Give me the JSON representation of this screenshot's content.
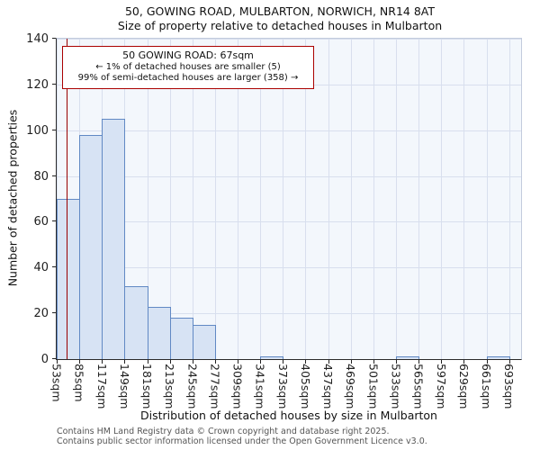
{
  "title": "50, GOWING ROAD, MULBARTON, NORWICH, NR14 8AT",
  "subtitle": "Size of property relative to detached houses in Mulbarton",
  "annotation": {
    "line1": "50 GOWING ROAD: 67sqm",
    "line2": "← 1% of detached houses are smaller (5)",
    "line3": "99% of semi-detached houses are larger (358) →"
  },
  "footer": {
    "line1": "Contains HM Land Registry data © Crown copyright and database right 2025.",
    "line2": "Contains public sector information licensed under the Open Government Licence v3.0."
  },
  "chart_data": {
    "type": "bar",
    "title": "50, GOWING ROAD, MULBARTON, NORWICH, NR14 8AT",
    "subtitle": "Size of property relative to detached houses in Mulbarton",
    "xlabel": "Distribution of detached houses by size in Mulbarton",
    "ylabel": "Number of detached properties",
    "categories": [
      "53sqm",
      "85sqm",
      "117sqm",
      "149sqm",
      "181sqm",
      "213sqm",
      "245sqm",
      "277sqm",
      "309sqm",
      "341sqm",
      "373sqm",
      "405sqm",
      "437sqm",
      "469sqm",
      "501sqm",
      "533sqm",
      "565sqm",
      "597sqm",
      "629sqm",
      "661sqm",
      "693sqm"
    ],
    "values": [
      70,
      98,
      105,
      32,
      23,
      18,
      15,
      0,
      0,
      1,
      0,
      0,
      0,
      0,
      0,
      1,
      0,
      0,
      0,
      1
    ],
    "bin_start": 53,
    "bin_width": 32,
    "xlim": [
      53,
      710
    ],
    "ylim": [
      0,
      140
    ],
    "ytick_step": 20,
    "marker_value": 67,
    "marker_label": "50 GOWING ROAD: 67sqm",
    "grid": true,
    "legend": "none",
    "colors": {
      "bar_fill": "#d7e3f4",
      "bar_border": "#6189c4",
      "marker": "#990000",
      "annotation_border": "#aa0000",
      "grid": "#d8dfee",
      "plot_bg": "#f3f7fc"
    }
  }
}
